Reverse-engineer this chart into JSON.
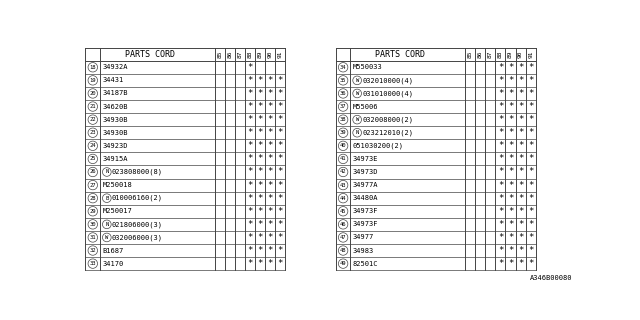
{
  "col_headers": [
    "85",
    "86",
    "87",
    "88",
    "89",
    "90",
    "91"
  ],
  "left_table_rows": [
    {
      "num": "18",
      "part": "34932A",
      "prefix": "",
      "marks": [
        0,
        0,
        0,
        1,
        0,
        0,
        0
      ]
    },
    {
      "num": "19",
      "part": "34431",
      "prefix": "",
      "marks": [
        0,
        0,
        0,
        1,
        1,
        1,
        1
      ]
    },
    {
      "num": "20",
      "part": "34187B",
      "prefix": "",
      "marks": [
        0,
        0,
        0,
        1,
        1,
        1,
        1
      ]
    },
    {
      "num": "21",
      "part": "34620B",
      "prefix": "",
      "marks": [
        0,
        0,
        0,
        1,
        1,
        1,
        1
      ]
    },
    {
      "num": "22",
      "part": "34930B",
      "prefix": "",
      "marks": [
        0,
        0,
        0,
        1,
        1,
        1,
        1
      ]
    },
    {
      "num": "23",
      "part": "34930B",
      "prefix": "",
      "marks": [
        0,
        0,
        0,
        1,
        1,
        1,
        1
      ]
    },
    {
      "num": "24",
      "part": "34923D",
      "prefix": "",
      "marks": [
        0,
        0,
        0,
        1,
        1,
        1,
        1
      ]
    },
    {
      "num": "25",
      "part": "34915A",
      "prefix": "",
      "marks": [
        0,
        0,
        0,
        1,
        1,
        1,
        1
      ]
    },
    {
      "num": "26",
      "part": "023808000(8)",
      "prefix": "N",
      "marks": [
        0,
        0,
        0,
        1,
        1,
        1,
        1
      ]
    },
    {
      "num": "27",
      "part": "M250018",
      "prefix": "",
      "marks": [
        0,
        0,
        0,
        1,
        1,
        1,
        1
      ]
    },
    {
      "num": "28",
      "part": "010006160(2)",
      "prefix": "B",
      "marks": [
        0,
        0,
        0,
        1,
        1,
        1,
        1
      ]
    },
    {
      "num": "29",
      "part": "M250017",
      "prefix": "",
      "marks": [
        0,
        0,
        0,
        1,
        1,
        1,
        1
      ]
    },
    {
      "num": "30",
      "part": "021806000(3)",
      "prefix": "N",
      "marks": [
        0,
        0,
        0,
        1,
        1,
        1,
        1
      ]
    },
    {
      "num": "31",
      "part": "032006000(3)",
      "prefix": "W",
      "marks": [
        0,
        0,
        0,
        1,
        1,
        1,
        1
      ]
    },
    {
      "num": "32",
      "part": "B1687",
      "prefix": "",
      "marks": [
        0,
        0,
        0,
        1,
        1,
        1,
        1
      ]
    },
    {
      "num": "33",
      "part": "34170",
      "prefix": "",
      "marks": [
        0,
        0,
        0,
        1,
        1,
        1,
        1
      ]
    }
  ],
  "right_table_rows": [
    {
      "num": "34",
      "part": "M550033",
      "prefix": "",
      "marks": [
        0,
        0,
        0,
        1,
        1,
        1,
        1
      ]
    },
    {
      "num": "35",
      "part": "032010000(4)",
      "prefix": "W",
      "marks": [
        0,
        0,
        0,
        1,
        1,
        1,
        1
      ]
    },
    {
      "num": "36",
      "part": "031010000(4)",
      "prefix": "W",
      "marks": [
        0,
        0,
        0,
        1,
        1,
        1,
        1
      ]
    },
    {
      "num": "37",
      "part": "M55006",
      "prefix": "",
      "marks": [
        0,
        0,
        0,
        1,
        1,
        1,
        1
      ]
    },
    {
      "num": "38",
      "part": "032008000(2)",
      "prefix": "W",
      "marks": [
        0,
        0,
        0,
        1,
        1,
        1,
        1
      ]
    },
    {
      "num": "39",
      "part": "023212010(2)",
      "prefix": "N",
      "marks": [
        0,
        0,
        0,
        1,
        1,
        1,
        1
      ]
    },
    {
      "num": "40",
      "part": "051030200(2)",
      "prefix": "",
      "marks": [
        0,
        0,
        0,
        1,
        1,
        1,
        1
      ]
    },
    {
      "num": "41",
      "part": "34973E",
      "prefix": "",
      "marks": [
        0,
        0,
        0,
        1,
        1,
        1,
        1
      ]
    },
    {
      "num": "42",
      "part": "34973D",
      "prefix": "",
      "marks": [
        0,
        0,
        0,
        1,
        1,
        1,
        1
      ]
    },
    {
      "num": "43",
      "part": "34977A",
      "prefix": "",
      "marks": [
        0,
        0,
        0,
        1,
        1,
        1,
        1
      ]
    },
    {
      "num": "44",
      "part": "34480A",
      "prefix": "",
      "marks": [
        0,
        0,
        0,
        1,
        1,
        1,
        1
      ]
    },
    {
      "num": "45",
      "part": "34973F",
      "prefix": "",
      "marks": [
        0,
        0,
        0,
        1,
        1,
        1,
        1
      ]
    },
    {
      "num": "46",
      "part": "34973F",
      "prefix": "",
      "marks": [
        0,
        0,
        0,
        1,
        1,
        1,
        1
      ]
    },
    {
      "num": "47",
      "part": "34977",
      "prefix": "",
      "marks": [
        0,
        0,
        0,
        1,
        1,
        1,
        1
      ]
    },
    {
      "num": "48",
      "part": "34983",
      "prefix": "",
      "marks": [
        0,
        0,
        0,
        1,
        1,
        1,
        1
      ]
    },
    {
      "num": "49",
      "part": "82501C",
      "prefix": "",
      "marks": [
        0,
        0,
        0,
        1,
        1,
        1,
        1
      ]
    }
  ],
  "bg_color": "#ffffff",
  "line_color": "#444444",
  "text_color": "#000000",
  "footer": "A346B00080"
}
